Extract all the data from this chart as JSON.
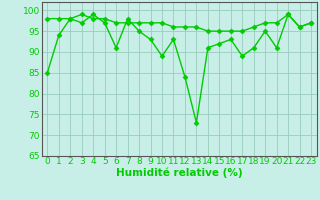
{
  "x": [
    0,
    1,
    2,
    3,
    4,
    5,
    6,
    7,
    8,
    9,
    10,
    11,
    12,
    13,
    14,
    15,
    16,
    17,
    18,
    19,
    20,
    21,
    22,
    23
  ],
  "line1": [
    98,
    98,
    98,
    99,
    98,
    98,
    97,
    97,
    97,
    97,
    97,
    96,
    96,
    96,
    95,
    95,
    95,
    95,
    96,
    97,
    97,
    99,
    96,
    97
  ],
  "line2": [
    85,
    94,
    98,
    97,
    99,
    97,
    91,
    98,
    95,
    93,
    89,
    93,
    84,
    73,
    91,
    92,
    93,
    89,
    91,
    95,
    91,
    99,
    96,
    97
  ],
  "line_color": "#00cc00",
  "bg_color": "#c8eee8",
  "grid_color": "#99ccbb",
  "xlabel": "Humidité relative (%)",
  "ylim": [
    65,
    102
  ],
  "xlim": [
    -0.5,
    23.5
  ],
  "yticks": [
    65,
    70,
    75,
    80,
    85,
    90,
    95,
    100
  ],
  "xticks": [
    0,
    1,
    2,
    3,
    4,
    5,
    6,
    7,
    8,
    9,
    10,
    11,
    12,
    13,
    14,
    15,
    16,
    17,
    18,
    19,
    20,
    21,
    22,
    23
  ],
  "marker": "D",
  "marker_size": 2.5,
  "line_width": 1.0,
  "font_size": 6.5,
  "xlabel_fontsize": 7.5
}
